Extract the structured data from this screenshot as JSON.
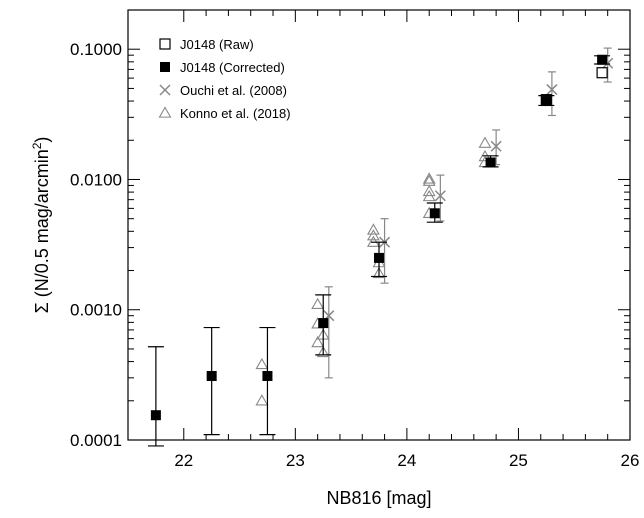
{
  "chart_data": {
    "type": "scatter",
    "xlabel": "NB816 [mag]",
    "ylabel_prefix": "Σ (N/0.5 mag/arcmin",
    "ylabel_sup": "2",
    "ylabel_suffix": ")",
    "xlim": [
      21.5,
      26.0
    ],
    "ylim": [
      0.0001,
      0.2
    ],
    "yscale": "log",
    "x_ticks": [
      22,
      23,
      24,
      25,
      26
    ],
    "x_tick_labels": [
      "22",
      "23",
      "24",
      "25",
      "26"
    ],
    "y_ticks": [
      0.0001,
      0.001,
      0.01,
      0.1
    ],
    "y_tick_labels": [
      "0.0001",
      "0.0010",
      "0.0100",
      "0.1000"
    ],
    "legend_position": "top-left",
    "series": [
      {
        "name": "J0148 (Raw)",
        "marker": "open-square",
        "color": "#000000",
        "points": [
          {
            "x": 25.25,
            "y": 0.041
          },
          {
            "x": 25.75,
            "y": 0.066
          }
        ]
      },
      {
        "name": "J0148 (Corrected)",
        "marker": "filled-square",
        "color": "#000000",
        "points": [
          {
            "x": 21.75,
            "y": 0.000155,
            "ylo": 9e-05,
            "yhi": 0.00052
          },
          {
            "x": 22.25,
            "y": 0.00031,
            "ylo": 0.00011,
            "yhi": 0.00073
          },
          {
            "x": 22.75,
            "y": 0.00031,
            "ylo": 0.00011,
            "yhi": 0.00073
          },
          {
            "x": 23.25,
            "y": 0.00079,
            "ylo": 0.00045,
            "yhi": 0.0013
          },
          {
            "x": 23.75,
            "y": 0.0025,
            "ylo": 0.0018,
            "yhi": 0.0033
          },
          {
            "x": 24.25,
            "y": 0.0055,
            "ylo": 0.0047,
            "yhi": 0.0066
          },
          {
            "x": 24.75,
            "y": 0.0135,
            "ylo": 0.0125,
            "yhi": 0.0152
          },
          {
            "x": 25.25,
            "y": 0.04,
            "ylo": 0.037,
            "yhi": 0.044
          },
          {
            "x": 25.75,
            "y": 0.083,
            "ylo": 0.077,
            "yhi": 0.089
          }
        ]
      },
      {
        "name": "Ouchi et al. (2008)",
        "marker": "cross",
        "color": "#888888",
        "points": [
          {
            "x": 23.3,
            "y": 0.0009,
            "ylo": 0.0003,
            "yhi": 0.0015
          },
          {
            "x": 23.8,
            "y": 0.0033,
            "ylo": 0.0016,
            "yhi": 0.005
          },
          {
            "x": 24.3,
            "y": 0.0075,
            "ylo": 0.0048,
            "yhi": 0.0108
          },
          {
            "x": 24.8,
            "y": 0.018,
            "ylo": 0.013,
            "yhi": 0.024
          },
          {
            "x": 25.3,
            "y": 0.049,
            "ylo": 0.031,
            "yhi": 0.067
          },
          {
            "x": 25.8,
            "y": 0.078,
            "ylo": 0.056,
            "yhi": 0.102
          }
        ]
      },
      {
        "name": "Konno et al. (2018)",
        "marker": "open-triangle",
        "color": "#888888",
        "points": [
          {
            "x": 22.7,
            "y": 0.00038
          },
          {
            "x": 22.7,
            "y": 0.0002
          },
          {
            "x": 23.2,
            "y": 0.0011
          },
          {
            "x": 23.2,
            "y": 0.00078
          },
          {
            "x": 23.2,
            "y": 0.00056
          },
          {
            "x": 23.25,
            "y": 0.00047
          },
          {
            "x": 23.25,
            "y": 0.00064
          },
          {
            "x": 23.7,
            "y": 0.0041
          },
          {
            "x": 23.7,
            "y": 0.0037
          },
          {
            "x": 23.7,
            "y": 0.0033
          },
          {
            "x": 23.75,
            "y": 0.0019
          },
          {
            "x": 23.75,
            "y": 0.0023
          },
          {
            "x": 24.2,
            "y": 0.0101
          },
          {
            "x": 24.2,
            "y": 0.0097
          },
          {
            "x": 24.2,
            "y": 0.0081
          },
          {
            "x": 24.2,
            "y": 0.0074
          },
          {
            "x": 24.2,
            "y": 0.0055
          },
          {
            "x": 24.7,
            "y": 0.019
          },
          {
            "x": 24.7,
            "y": 0.015
          },
          {
            "x": 24.7,
            "y": 0.0135
          }
        ]
      }
    ]
  }
}
